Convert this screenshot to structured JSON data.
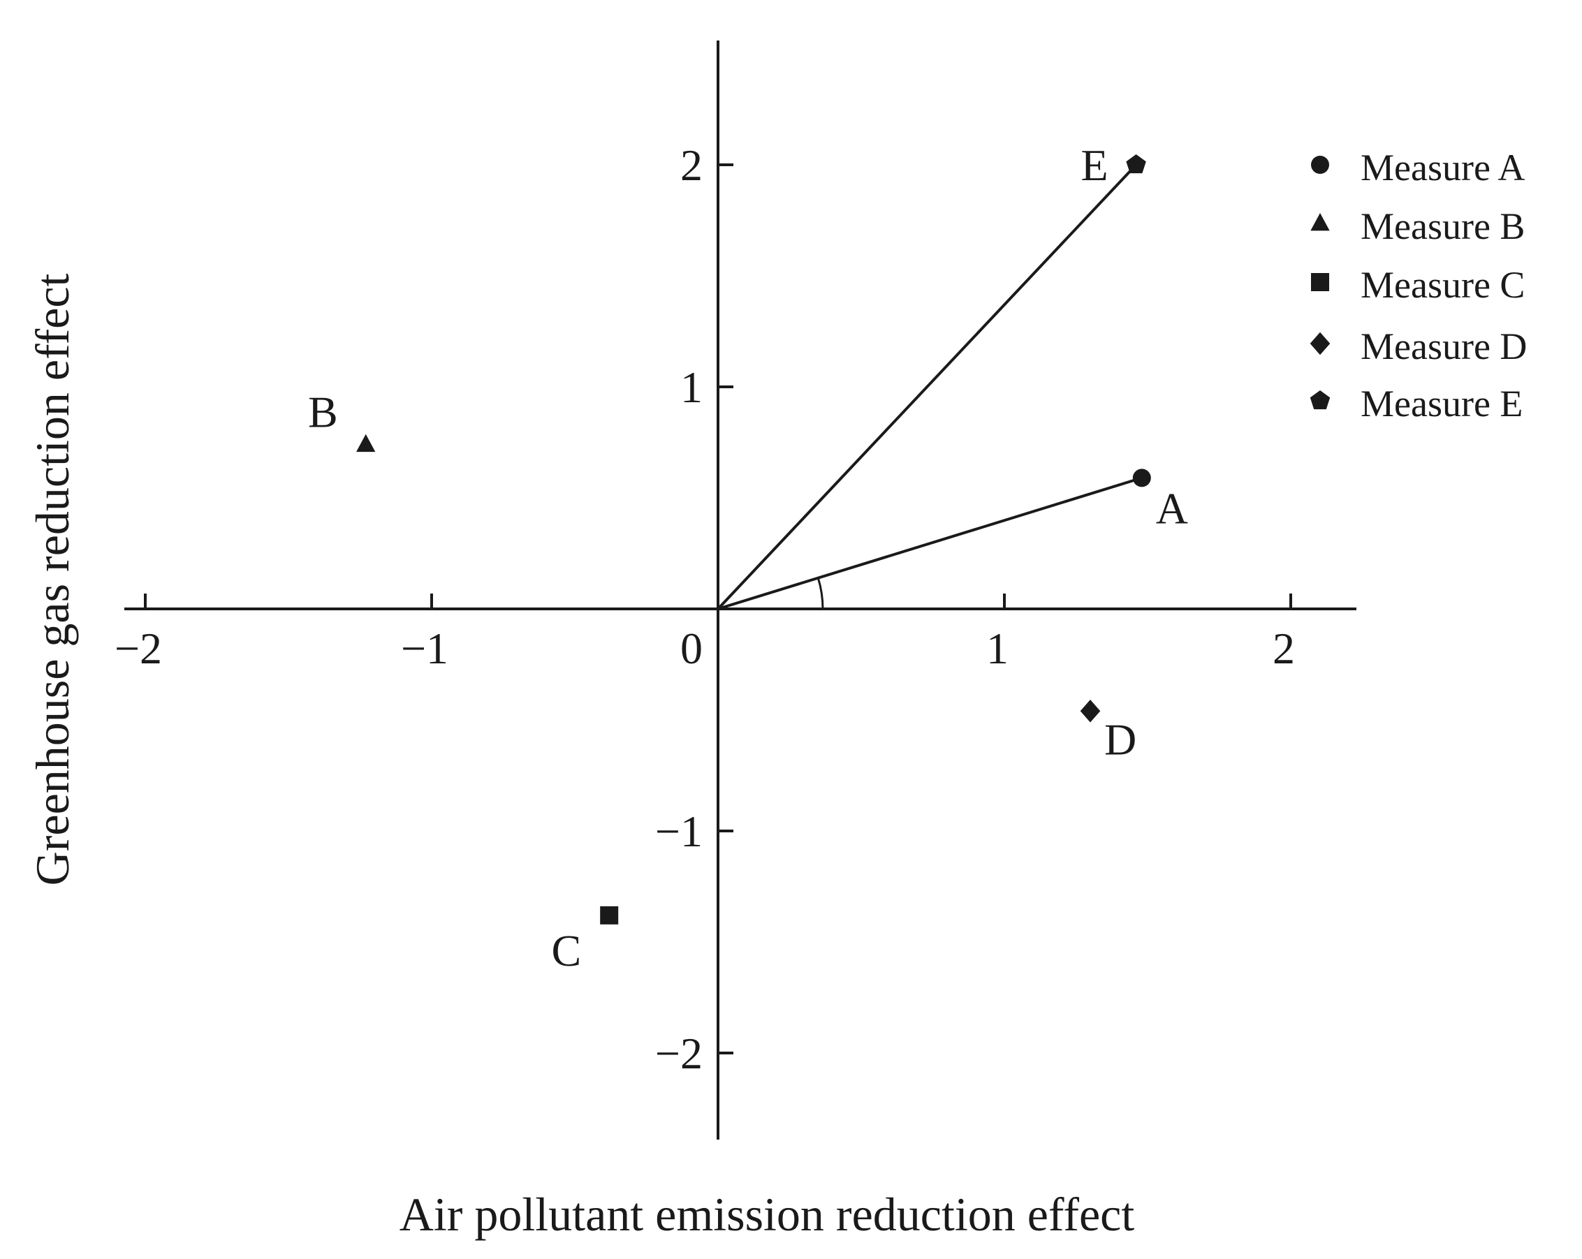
{
  "chart_data": {
    "type": "scatter",
    "xlabel": "Air pollutant emission reduction effect",
    "ylabel": "Greenhouse gas reduction effect",
    "xlim": [
      -2.25,
      2.25
    ],
    "ylim": [
      -2.3,
      2.6
    ],
    "x_ticks": [
      -2,
      -1,
      0,
      1,
      2
    ],
    "y_ticks": [
      -2,
      -1,
      1,
      2
    ],
    "x_tick_labels": [
      "−2",
      "−1",
      "0",
      "1",
      "2"
    ],
    "y_tick_labels": [
      "−2",
      "−1",
      "1",
      "2"
    ],
    "grid": false,
    "legend_position": "top-right",
    "series": [
      {
        "name": "Measure A",
        "label": "A",
        "marker": "circle",
        "x": 1.48,
        "y": 0.59
      },
      {
        "name": "Measure B",
        "label": "B",
        "marker": "triangle",
        "x": -1.23,
        "y": 0.74
      },
      {
        "name": "Measure C",
        "label": "C",
        "marker": "square",
        "x": -0.38,
        "y": -1.38
      },
      {
        "name": "Measure D",
        "label": "D",
        "marker": "diamond",
        "x": 1.3,
        "y": -0.46
      },
      {
        "name": "Measure E",
        "label": "E",
        "marker": "pentagon",
        "x": 1.46,
        "y": 2.0
      }
    ],
    "vectors_from_origin": [
      "A",
      "E"
    ],
    "angle_arc_between": [
      "x-axis",
      "A"
    ]
  }
}
